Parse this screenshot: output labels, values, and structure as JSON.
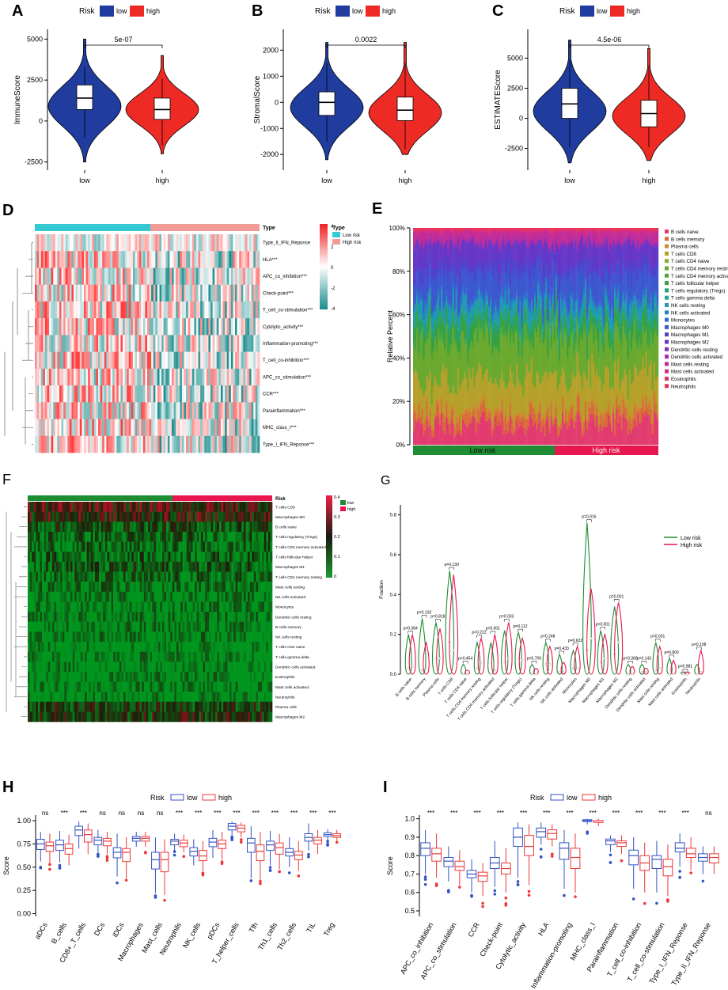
{
  "panels": {
    "A": {
      "letter": "A",
      "ylabel": "ImmuneScore",
      "pvalue": "5e-07",
      "groups": [
        "low",
        "high"
      ],
      "ticks": [
        "5000",
        "2500",
        "0",
        "-2500"
      ],
      "tickvals": [
        5000,
        2500,
        0,
        -2500
      ],
      "ylim": [
        -3000,
        5600
      ],
      "low": {
        "q1": 700,
        "median": 1400,
        "q3": 2200,
        "min": -1000,
        "max": 3300,
        "vmin": -2500,
        "vmax": 5000,
        "peak": 900
      },
      "high": {
        "q1": 100,
        "median": 700,
        "q3": 1400,
        "min": -1500,
        "max": 2600,
        "vmin": -2000,
        "vmax": 4000,
        "peak": 700
      }
    },
    "B": {
      "letter": "B",
      "ylabel": "StromalScore",
      "pvalue": "0.0022",
      "groups": [
        "low",
        "high"
      ],
      "ticks": [
        "2000",
        "1000",
        "0",
        "-1000",
        "-2000"
      ],
      "tickvals": [
        2000,
        1000,
        0,
        -1000,
        -2000
      ],
      "ylim": [
        -2600,
        2800
      ],
      "low": {
        "q1": -500,
        "median": 0,
        "q3": 400,
        "min": -1500,
        "max": 1500,
        "vmin": -2200,
        "vmax": 2300,
        "peak": -200
      },
      "high": {
        "q1": -700,
        "median": -300,
        "q3": 200,
        "min": -1800,
        "max": 1500,
        "vmin": -2000,
        "vmax": 2300,
        "peak": -400
      }
    },
    "C": {
      "letter": "C",
      "ylabel": "ESTIMATEScore",
      "pvalue": "4.5e-06",
      "groups": [
        "low",
        "high"
      ],
      "ticks": [
        "5000",
        "2500",
        "0",
        "-2500"
      ],
      "tickvals": [
        5000,
        2500,
        0,
        -2500
      ],
      "ylim": [
        -4300,
        7400
      ],
      "low": {
        "q1": 0,
        "median": 1200,
        "q3": 2500,
        "min": -2400,
        "max": 4800,
        "vmin": -3700,
        "vmax": 6500,
        "peak": 600
      },
      "high": {
        "q1": -700,
        "median": 400,
        "q3": 1500,
        "min": -2400,
        "max": 4400,
        "vmin": -3500,
        "vmax": 5800,
        "peak": 200
      }
    },
    "D": {
      "letter": "D",
      "rows": [
        "Type_II_IFN_Reponse",
        "HLA***",
        "APC_co_inhibition***",
        "Check-point***",
        "T_cell_co-stimulation***",
        "Cytolytic_activity***",
        "Inflammation-promoting***",
        "T_cell_co-inhibition***",
        "APC_co_stimulation***",
        "CCR***",
        "Parainflammation***",
        "MHC_class_I***",
        "Type_I_IFN_Reponse***"
      ],
      "type_label": "Type",
      "legend_title": "Type",
      "legend_low": "Low risk",
      "legend_high": "High risk",
      "scale": [
        "4",
        "2",
        "0",
        "-2",
        "-4"
      ]
    },
    "E": {
      "letter": "E",
      "ylabel": "Relative Percent",
      "ticks": [
        "100%",
        "80%",
        "60%",
        "40%",
        "20%",
        "0%"
      ],
      "bar_low": "Low risk",
      "bar_high": "High risk",
      "cells": [
        "B cells naive",
        "B cells memory",
        "Plasma cells",
        "T cells CD8",
        "T cells CD4 naive",
        "T cells CD4 memory resting",
        "T cells CD4 memory activated",
        "T cells follicular helper",
        "T cells regulatory (Tregs)",
        "T cells gamma delta",
        "NK cells resting",
        "NK cells activated",
        "Monocytes",
        "Macrophages M0",
        "Macrophages M1",
        "Macrophages M2",
        "Dendritic cells resting",
        "Dendritic cells activated",
        "Mast cells resting",
        "Mast cells activated",
        "Eosinophils",
        "Neutrophils"
      ],
      "colors": [
        "#e23b6f",
        "#d96b3a",
        "#cf8a2e",
        "#b5a02a",
        "#8ea82c",
        "#6aa82e",
        "#4ea838",
        "#34a044",
        "#25a07a",
        "#23a5a0",
        "#1f98b4",
        "#1f86c3",
        "#2f6fcf",
        "#3c58cf",
        "#4c44cf",
        "#6636c6",
        "#8a2fb8",
        "#a92cab",
        "#c22c98",
        "#d42b84",
        "#e02c70",
        "#e8335a"
      ]
    },
    "F": {
      "letter": "F",
      "rows": [
        "T cells CD8",
        "Macrophages M0",
        "B cells naive",
        "T cells regulatory (Tregs)",
        "T cells CD4 memory activated",
        "T cells follicular helper",
        "Macrophages M1",
        "T cells CD4 memory resting",
        "Mast cells resting",
        "NK cells activated",
        "Monocytes",
        "Dendritic cells resting",
        "B cells memory",
        "NK cells resting",
        "T cells CD4 naive",
        "T cells gamma delta",
        "Dendritic cells activated",
        "Eosinophils",
        "Mast cells activated",
        "Neutrophils",
        "Plasma cells",
        "Macrophages M2"
      ],
      "risk_label": "Risk",
      "legend_low": "low",
      "legend_high": "high",
      "scale": [
        "0.4",
        "0.3",
        "0.2",
        "0.1",
        "0"
      ]
    },
    "G": {
      "letter": "G",
      "ylabel": "Fraction",
      "ticks": [
        "0.8",
        "0.6",
        "0.4",
        "0.2",
        "0.0"
      ],
      "tickvals": [
        0.8,
        0.6,
        0.4,
        0.2,
        0.0
      ],
      "legend_low": "Low risk",
      "legend_high": "High risk"
    },
    "H": {
      "letter": "H",
      "ylabel": "Score",
      "legend_title": "Risk",
      "legend_low": "low",
      "legend_high": "high",
      "ticks": [
        "1.00",
        "0.75",
        "0.50",
        "0.25",
        "0.00"
      ],
      "tickvals": [
        1.0,
        0.75,
        0.5,
        0.25,
        0.0
      ],
      "ylim": [
        -0.03,
        1.06
      ]
    },
    "I": {
      "letter": "I",
      "ylabel": "Score",
      "legend_title": "Risk",
      "legend_low": "low",
      "legend_high": "high",
      "ticks": [
        "1.0",
        "0.9",
        "0.8",
        "0.7",
        "0.6",
        "0.5"
      ],
      "tickvals": [
        1.0,
        0.9,
        0.8,
        0.7,
        0.6,
        0.5
      ],
      "ylim": [
        0.47,
        1.02
      ]
    }
  },
  "colors": {
    "low_violin": "#1f3c9e",
    "high_violin": "#ee2a24",
    "heat_pos": "#ee3b3b",
    "heat_neg": "#1a8c8c",
    "low_risk_bar": "#1e8c32",
    "high_risk_bar": "#e8164f",
    "box_low": "#3353c4",
    "box_high": "#ee3737",
    "type_low": "#35c9d3",
    "type_high": "#f19b96"
  },
  "chart_data": [
    {
      "type": "violin",
      "title": "A",
      "ylabel": "ImmuneScore",
      "categories": [
        "low",
        "high"
      ],
      "medians": [
        1400,
        700
      ],
      "pvalue": "5e-07"
    },
    {
      "type": "violin",
      "title": "B",
      "ylabel": "StromalScore",
      "categories": [
        "low",
        "high"
      ],
      "medians": [
        0,
        -300
      ],
      "pvalue": "0.0022"
    },
    {
      "type": "violin",
      "title": "C",
      "ylabel": "ESTIMATEScore",
      "categories": [
        "low",
        "high"
      ],
      "medians": [
        1200,
        400
      ],
      "pvalue": "4.5e-06"
    },
    {
      "type": "heatmap",
      "title": "D",
      "rows": 13,
      "scale": [
        -4,
        4
      ]
    },
    {
      "type": "bar",
      "title": "E",
      "stacked": true,
      "ylabel": "Relative Percent",
      "ylim": [
        0,
        100
      ]
    },
    {
      "type": "heatmap",
      "title": "F",
      "rows": 22,
      "scale": [
        0,
        0.4
      ]
    },
    {
      "type": "violin",
      "title": "G",
      "ylabel": "Fraction",
      "categories": [
        "B cells naive",
        "B cells memory",
        "Plasma cells",
        "T cells CD8",
        "T cells CD4 naive",
        "T cells CD4 memory resting",
        "T cells CD4 memory activated",
        "T cells follicular helper",
        "T cells regulatory (Tregs)",
        "T cells gamma delta",
        "NK cells resting",
        "NK cells activated",
        "Monocytes",
        "Macrophages M0",
        "Macrophages M1",
        "Macrophages M2",
        "Dendritic cells resting",
        "Dendritic cells activated",
        "Mast cells resting",
        "Mast cells activated",
        "Eosinophils",
        "Neutrophils"
      ],
      "pvalues": [
        "p=0.384",
        "p=0.103",
        "p=0.818",
        "p=0.130",
        "p=0.454",
        "p=0.222",
        "p=0.001",
        "p=0.033",
        "p=0.112",
        "p=0.709",
        "p=0.248",
        "p=0.433",
        "p=0.622",
        "p=0.016",
        "p=0.001",
        "p=0.001",
        "p=0.368",
        "p=0.143",
        "p=0.031",
        "p=0.800",
        "p=0.981",
        "p=0.158"
      ],
      "max_low": [
        0.2,
        0.28,
        0.26,
        0.52,
        0.05,
        0.16,
        0.16,
        0.22,
        0.21,
        0.05,
        0.16,
        0.1,
        0.12,
        0.76,
        0.22,
        0.34,
        0.05,
        0.05,
        0.16,
        0.08,
        0.01,
        0.05
      ],
      "max_high": [
        0.2,
        0.16,
        0.23,
        0.5,
        0.02,
        0.18,
        0.2,
        0.26,
        0.18,
        0.03,
        0.14,
        0.06,
        0.14,
        0.43,
        0.2,
        0.36,
        0.04,
        0.03,
        0.14,
        0.07,
        0.01,
        0.12
      ],
      "median_low": [
        0.03,
        0.02,
        0.08,
        0.16,
        0.0,
        0.03,
        0.0,
        0.06,
        0.08,
        0.0,
        0.05,
        0.01,
        0.03,
        0.12,
        0.06,
        0.1,
        0.0,
        0.01,
        0.02,
        0.0,
        0.0,
        0.0
      ],
      "median_high": [
        0.04,
        0.03,
        0.08,
        0.12,
        0.0,
        0.06,
        0.02,
        0.08,
        0.07,
        0.0,
        0.05,
        0.01,
        0.03,
        0.18,
        0.08,
        0.16,
        0.0,
        0.01,
        0.03,
        0.0,
        0.0,
        0.01
      ]
    },
    {
      "type": "box",
      "title": "H",
      "ylabel": "Score",
      "ylim": [
        0,
        1
      ],
      "categories": [
        "aDCs",
        "B_cells",
        "CD8+_T_cells",
        "DCs",
        "iDCs",
        "Macrophages",
        "Mast_cells",
        "Neutrophils",
        "NK_cells",
        "pDCs",
        "T_helper_cells",
        "Tfh",
        "Th1_cells",
        "Th2_cells",
        "TIL",
        "Treg"
      ],
      "significance": [
        "ns",
        "***",
        "***",
        "ns",
        "ns",
        "ns",
        "ns",
        "***",
        "***",
        "***",
        "***",
        "***",
        "***",
        "***",
        "***",
        "***"
      ],
      "series": [
        {
          "name": "low",
          "q1": [
            0.69,
            0.68,
            0.84,
            0.74,
            0.6,
            0.78,
            0.48,
            0.74,
            0.62,
            0.72,
            0.9,
            0.66,
            0.68,
            0.62,
            0.78,
            0.83
          ],
          "median": [
            0.75,
            0.74,
            0.9,
            0.79,
            0.66,
            0.81,
            0.58,
            0.78,
            0.67,
            0.77,
            0.94,
            0.76,
            0.74,
            0.66,
            0.82,
            0.85
          ],
          "q3": [
            0.8,
            0.79,
            0.94,
            0.82,
            0.71,
            0.83,
            0.66,
            0.8,
            0.71,
            0.81,
            0.97,
            0.81,
            0.78,
            0.7,
            0.86,
            0.87
          ],
          "min": [
            0.56,
            0.55,
            0.7,
            0.66,
            0.4,
            0.72,
            0.22,
            0.68,
            0.52,
            0.6,
            0.84,
            0.38,
            0.52,
            0.5,
            0.68,
            0.79
          ],
          "max": [
            0.88,
            0.89,
            0.99,
            0.9,
            0.86,
            0.88,
            0.82,
            0.86,
            0.8,
            0.9,
            0.99,
            0.94,
            0.89,
            0.82,
            0.97,
            0.91
          ]
        },
        {
          "name": "high",
          "q1": [
            0.67,
            0.64,
            0.77,
            0.73,
            0.56,
            0.78,
            0.45,
            0.72,
            0.57,
            0.7,
            0.88,
            0.57,
            0.64,
            0.58,
            0.75,
            0.82
          ],
          "median": [
            0.73,
            0.7,
            0.85,
            0.78,
            0.66,
            0.81,
            0.58,
            0.76,
            0.62,
            0.75,
            0.92,
            0.67,
            0.71,
            0.63,
            0.79,
            0.84
          ],
          "q3": [
            0.77,
            0.75,
            0.9,
            0.81,
            0.7,
            0.83,
            0.66,
            0.79,
            0.68,
            0.79,
            0.95,
            0.74,
            0.76,
            0.67,
            0.82,
            0.86
          ],
          "min": [
            0.54,
            0.52,
            0.64,
            0.64,
            0.38,
            0.72,
            0.2,
            0.66,
            0.46,
            0.58,
            0.82,
            0.36,
            0.48,
            0.46,
            0.64,
            0.78
          ],
          "max": [
            0.86,
            0.85,
            0.97,
            0.88,
            0.82,
            0.88,
            0.8,
            0.85,
            0.78,
            0.88,
            0.98,
            0.88,
            0.86,
            0.78,
            0.9,
            0.9
          ]
        }
      ]
    },
    {
      "type": "box",
      "title": "I",
      "ylabel": "Score",
      "ylim": [
        0.5,
        1.0
      ],
      "categories": [
        "APC_co_inhibition",
        "APC_co_stimulation",
        "CCR",
        "Check-point",
        "Cytolytic_activity",
        "HLA",
        "Inflammation-promoting",
        "MHC_class_I",
        "Parainflammation",
        "T_cell_co-inhibition",
        "T_cell_co-stimulation",
        "Type_I_IFN_Reponse",
        "Type_II_IFN_Reponse"
      ],
      "significance": [
        "***",
        "***",
        "***",
        "***",
        "***",
        "***",
        "***",
        "***",
        "***",
        "***",
        "***",
        "***",
        "ns"
      ],
      "series": [
        {
          "name": "low",
          "q1": [
            0.8,
            0.74,
            0.68,
            0.73,
            0.85,
            0.9,
            0.78,
            0.985,
            0.86,
            0.75,
            0.73,
            0.82,
            0.77
          ],
          "median": [
            0.84,
            0.77,
            0.7,
            0.76,
            0.9,
            0.93,
            0.84,
            0.99,
            0.88,
            0.8,
            0.78,
            0.84,
            0.79
          ],
          "q3": [
            0.87,
            0.79,
            0.72,
            0.79,
            0.95,
            0.95,
            0.87,
            0.995,
            0.89,
            0.83,
            0.8,
            0.87,
            0.81
          ],
          "min": [
            0.7,
            0.66,
            0.6,
            0.63,
            0.68,
            0.86,
            0.62,
            0.97,
            0.82,
            0.62,
            0.6,
            0.74,
            0.7
          ],
          "max": [
            0.94,
            0.85,
            0.78,
            0.88,
            0.98,
            0.98,
            0.94,
            1.0,
            0.91,
            0.9,
            0.88,
            0.92,
            0.85
          ]
        },
        {
          "name": "high",
          "q1": [
            0.77,
            0.72,
            0.66,
            0.7,
            0.8,
            0.89,
            0.73,
            0.98,
            0.85,
            0.72,
            0.69,
            0.79,
            0.76
          ],
          "median": [
            0.81,
            0.74,
            0.69,
            0.73,
            0.85,
            0.92,
            0.79,
            0.99,
            0.87,
            0.76,
            0.74,
            0.81,
            0.79
          ],
          "q3": [
            0.84,
            0.77,
            0.71,
            0.76,
            0.91,
            0.94,
            0.84,
            0.99,
            0.88,
            0.8,
            0.78,
            0.84,
            0.81
          ],
          "min": [
            0.68,
            0.64,
            0.58,
            0.6,
            0.64,
            0.85,
            0.6,
            0.96,
            0.81,
            0.6,
            0.58,
            0.72,
            0.7
          ],
          "max": [
            0.92,
            0.83,
            0.76,
            0.84,
            0.97,
            0.97,
            0.92,
            1.0,
            0.91,
            0.87,
            0.86,
            0.9,
            0.85
          ]
        }
      ]
    }
  ]
}
